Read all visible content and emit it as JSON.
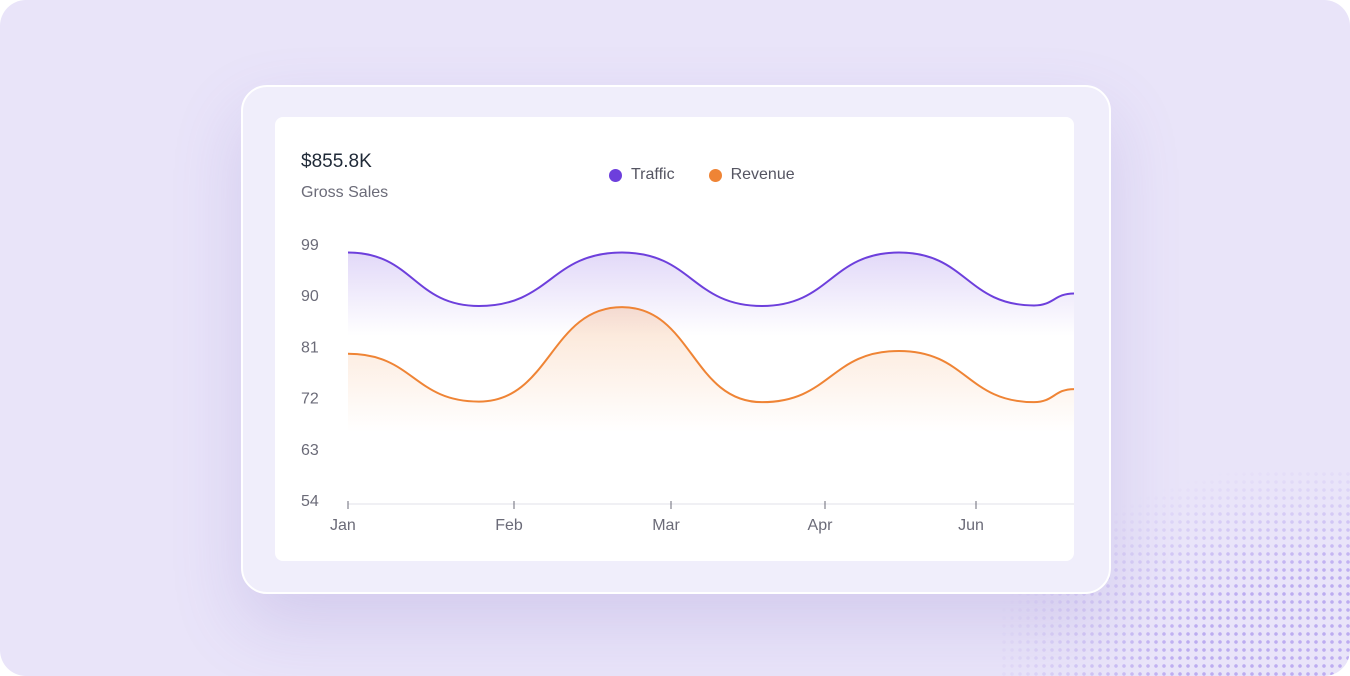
{
  "summary": {
    "total": "$855.8K",
    "label": "Gross Sales"
  },
  "colors": {
    "traffic": "#6d3fdc",
    "revenue": "#ef8435",
    "axis": "#e2e2ea",
    "tick_text": "#6b6b78"
  },
  "chart_data": {
    "type": "area",
    "title": "",
    "xlabel": "",
    "ylabel": "",
    "categories": [
      "Jan",
      "Feb",
      "Mar",
      "Apr",
      "Jun"
    ],
    "ylim": [
      54,
      99
    ],
    "yticks": [
      99,
      90,
      81,
      72,
      63,
      54
    ],
    "grid": false,
    "legend": "top-center",
    "series": [
      {
        "name": "Traffic",
        "color": "#6d3fdc",
        "points": [
          {
            "x": "Jan",
            "y": 97.5
          },
          {
            "x": "Jan-Feb",
            "y": 88.1
          },
          {
            "x": "Feb-Mar",
            "y": 97.5
          },
          {
            "x": "Mar-Apr",
            "y": 88.1
          },
          {
            "x": "Apr-Jun",
            "y": 97.5
          },
          {
            "x": "Jun",
            "y": 88.2
          },
          {
            "x": "end",
            "y": 90.3
          }
        ]
      },
      {
        "name": "Revenue",
        "color": "#ef8435",
        "points": [
          {
            "x": "Jan",
            "y": 79.7
          },
          {
            "x": "Jan-Feb",
            "y": 71.3
          },
          {
            "x": "Feb-Mar",
            "y": 87.9
          },
          {
            "x": "Mar-Apr",
            "y": 71.2
          },
          {
            "x": "Apr-Jun",
            "y": 80.2
          },
          {
            "x": "Jun",
            "y": 71.2
          },
          {
            "x": "end",
            "y": 73.5
          }
        ]
      }
    ]
  }
}
